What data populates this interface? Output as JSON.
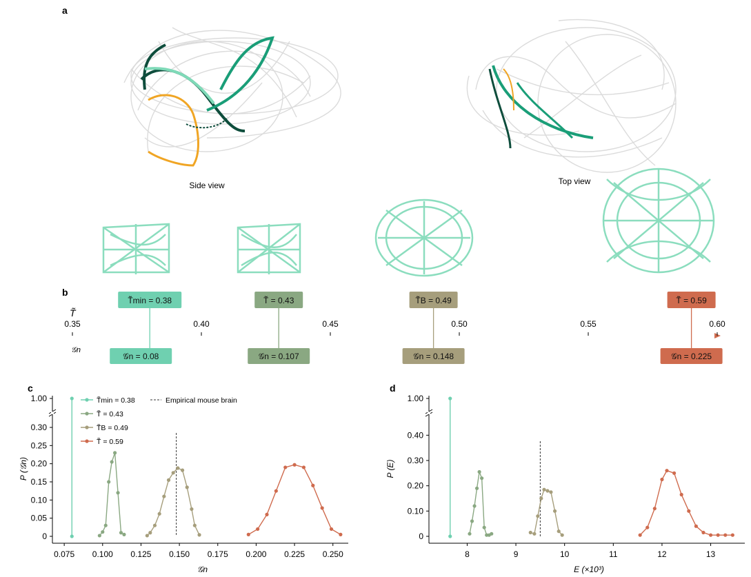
{
  "panels": {
    "a": "a",
    "b": "b",
    "c": "c",
    "d": "d"
  },
  "a": {
    "side_view": "Side view",
    "top_view": "Top view"
  },
  "b": {
    "t_axis_label": "T̃",
    "g_axis_label": "𝒢n",
    "ticks": [
      "0.35",
      "0.40",
      "0.45",
      "0.50",
      "0.55",
      "0.60"
    ],
    "tick_values": [
      0.35,
      0.4,
      0.45,
      0.5,
      0.55,
      0.6
    ],
    "markers": [
      {
        "t_label": "T̃min = 0.38",
        "g_label": "𝒢n = 0.08",
        "t": 0.38,
        "g": 0.08,
        "color": "#6fd0b0"
      },
      {
        "t_label": "T̃ = 0.43",
        "g_label": "𝒢n = 0.107",
        "t": 0.43,
        "g": 0.107,
        "color": "#8aa882"
      },
      {
        "t_label": "T̃B = 0.49",
        "g_label": "𝒢n = 0.148",
        "t": 0.49,
        "g": 0.148,
        "color": "#a69e7c"
      },
      {
        "t_label": "T̃ = 0.59",
        "g_label": "𝒢n = 0.225",
        "t": 0.59,
        "g": 0.225,
        "color": "#cf6b4e"
      }
    ]
  },
  "chart_data": [
    {
      "type": "line",
      "panel": "c",
      "xlabel": "𝒢n",
      "ylabel": "P (𝒢n)",
      "xlim": [
        0.07,
        0.26
      ],
      "xticks": [
        "0.075",
        "0.100",
        "0.125",
        "0.150",
        "0.175",
        "0.200",
        "0.225",
        "0.250"
      ],
      "xtick_values": [
        0.075,
        0.1,
        0.125,
        0.15,
        0.175,
        0.2,
        0.225,
        0.25
      ],
      "yticks": [
        "0",
        "0.05",
        "0.10",
        "0.15",
        "0.20",
        "0.25",
        "0.30",
        "1.00"
      ],
      "legend": [
        "T̃min = 0.38",
        "T̃ = 0.43",
        "T̃B = 0.49",
        "T̃ = 0.59"
      ],
      "reference_label": "Empirical mouse brain",
      "reference_x": 0.148,
      "series": [
        {
          "name": "T̃min = 0.38",
          "color": "#6fd0b0",
          "spike": true,
          "x": [
            0.08,
            0.08
          ],
          "y": [
            0,
            1.0
          ]
        },
        {
          "name": "T̃ = 0.43",
          "color": "#8aa882",
          "x": [
            0.098,
            0.1,
            0.102,
            0.104,
            0.106,
            0.108,
            0.11,
            0.112,
            0.114
          ],
          "y": [
            0.002,
            0.012,
            0.03,
            0.15,
            0.205,
            0.23,
            0.12,
            0.01,
            0.005
          ]
        },
        {
          "name": "T̃B = 0.49",
          "color": "#a69e7c",
          "x": [
            0.129,
            0.131,
            0.134,
            0.137,
            0.14,
            0.143,
            0.146,
            0.149,
            0.152,
            0.155,
            0.158,
            0.16,
            0.163
          ],
          "y": [
            0.002,
            0.01,
            0.03,
            0.062,
            0.11,
            0.155,
            0.175,
            0.188,
            0.182,
            0.135,
            0.075,
            0.03,
            0.004
          ]
        },
        {
          "name": "T̃ = 0.59",
          "color": "#cf6b4e",
          "x": [
            0.195,
            0.201,
            0.207,
            0.213,
            0.219,
            0.225,
            0.231,
            0.237,
            0.243,
            0.249,
            0.255
          ],
          "y": [
            0.005,
            0.02,
            0.06,
            0.125,
            0.19,
            0.197,
            0.19,
            0.14,
            0.078,
            0.02,
            0.005
          ]
        }
      ]
    },
    {
      "type": "line",
      "panel": "d",
      "xlabel": "E (×10³)",
      "ylabel": "P (E)",
      "xlim": [
        7.3,
        13.7
      ],
      "xticks": [
        "8",
        "9",
        "10",
        "11",
        "12",
        "13"
      ],
      "xtick_values": [
        8,
        9,
        10,
        11,
        12,
        13
      ],
      "yticks": [
        "0",
        "0.10",
        "0.20",
        "0.30",
        "0.40",
        "1.00"
      ],
      "reference_x": 9.5,
      "series": [
        {
          "name": "T̃min = 0.38",
          "color": "#6fd0b0",
          "spike": true,
          "x": [
            7.65,
            7.65
          ],
          "y": [
            0,
            1.0
          ]
        },
        {
          "name": "T̃ = 0.43",
          "color": "#8aa882",
          "x": [
            8.05,
            8.1,
            8.15,
            8.2,
            8.25,
            8.3,
            8.35,
            8.4,
            8.45,
            8.5
          ],
          "y": [
            0.01,
            0.06,
            0.12,
            0.19,
            0.255,
            0.23,
            0.035,
            0.005,
            0.005,
            0.01
          ]
        },
        {
          "name": "T̃B = 0.49",
          "color": "#a69e7c",
          "x": [
            9.3,
            9.38,
            9.45,
            9.52,
            9.58,
            9.65,
            9.72,
            9.8,
            9.88,
            9.95
          ],
          "y": [
            0.015,
            0.01,
            0.08,
            0.15,
            0.185,
            0.18,
            0.175,
            0.1,
            0.02,
            0.005
          ]
        },
        {
          "name": "T̃ = 0.59",
          "color": "#cf6b4e",
          "x": [
            11.55,
            11.7,
            11.85,
            12.0,
            12.1,
            12.25,
            12.4,
            12.55,
            12.7,
            12.85,
            13.0,
            13.15,
            13.3,
            13.45
          ],
          "y": [
            0.005,
            0.035,
            0.11,
            0.225,
            0.26,
            0.25,
            0.165,
            0.1,
            0.04,
            0.015,
            0.005,
            0.005,
            0.005,
            0.005
          ]
        }
      ]
    }
  ],
  "colors": {
    "gray": "#c8c8c8",
    "teal_dark": "#0e4d3c",
    "teal": "#1a9e78",
    "mint": "#7fdab8",
    "orange": "#f0a524",
    "axis": "#000000"
  }
}
